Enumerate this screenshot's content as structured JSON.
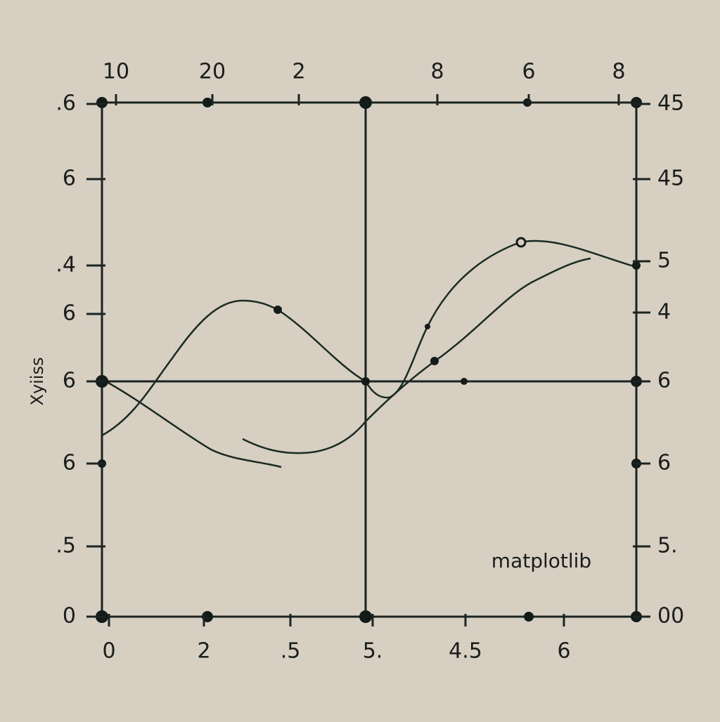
{
  "top_labels": [
    "10",
    "20",
    "2",
    "8",
    "6",
    "8"
  ],
  "bottom_labels": [
    "0",
    "2",
    ".5",
    "5.",
    "4.5",
    "6"
  ],
  "left_labels": [
    ".6",
    "6",
    ".4",
    "6",
    "6",
    "6",
    ".5",
    "0"
  ],
  "right_labels": [
    "45",
    "45",
    "5",
    "4",
    "6",
    "6",
    "5.",
    "00"
  ],
  "y_axis_label": "Xyiiss",
  "watermark": "matplotlib"
}
